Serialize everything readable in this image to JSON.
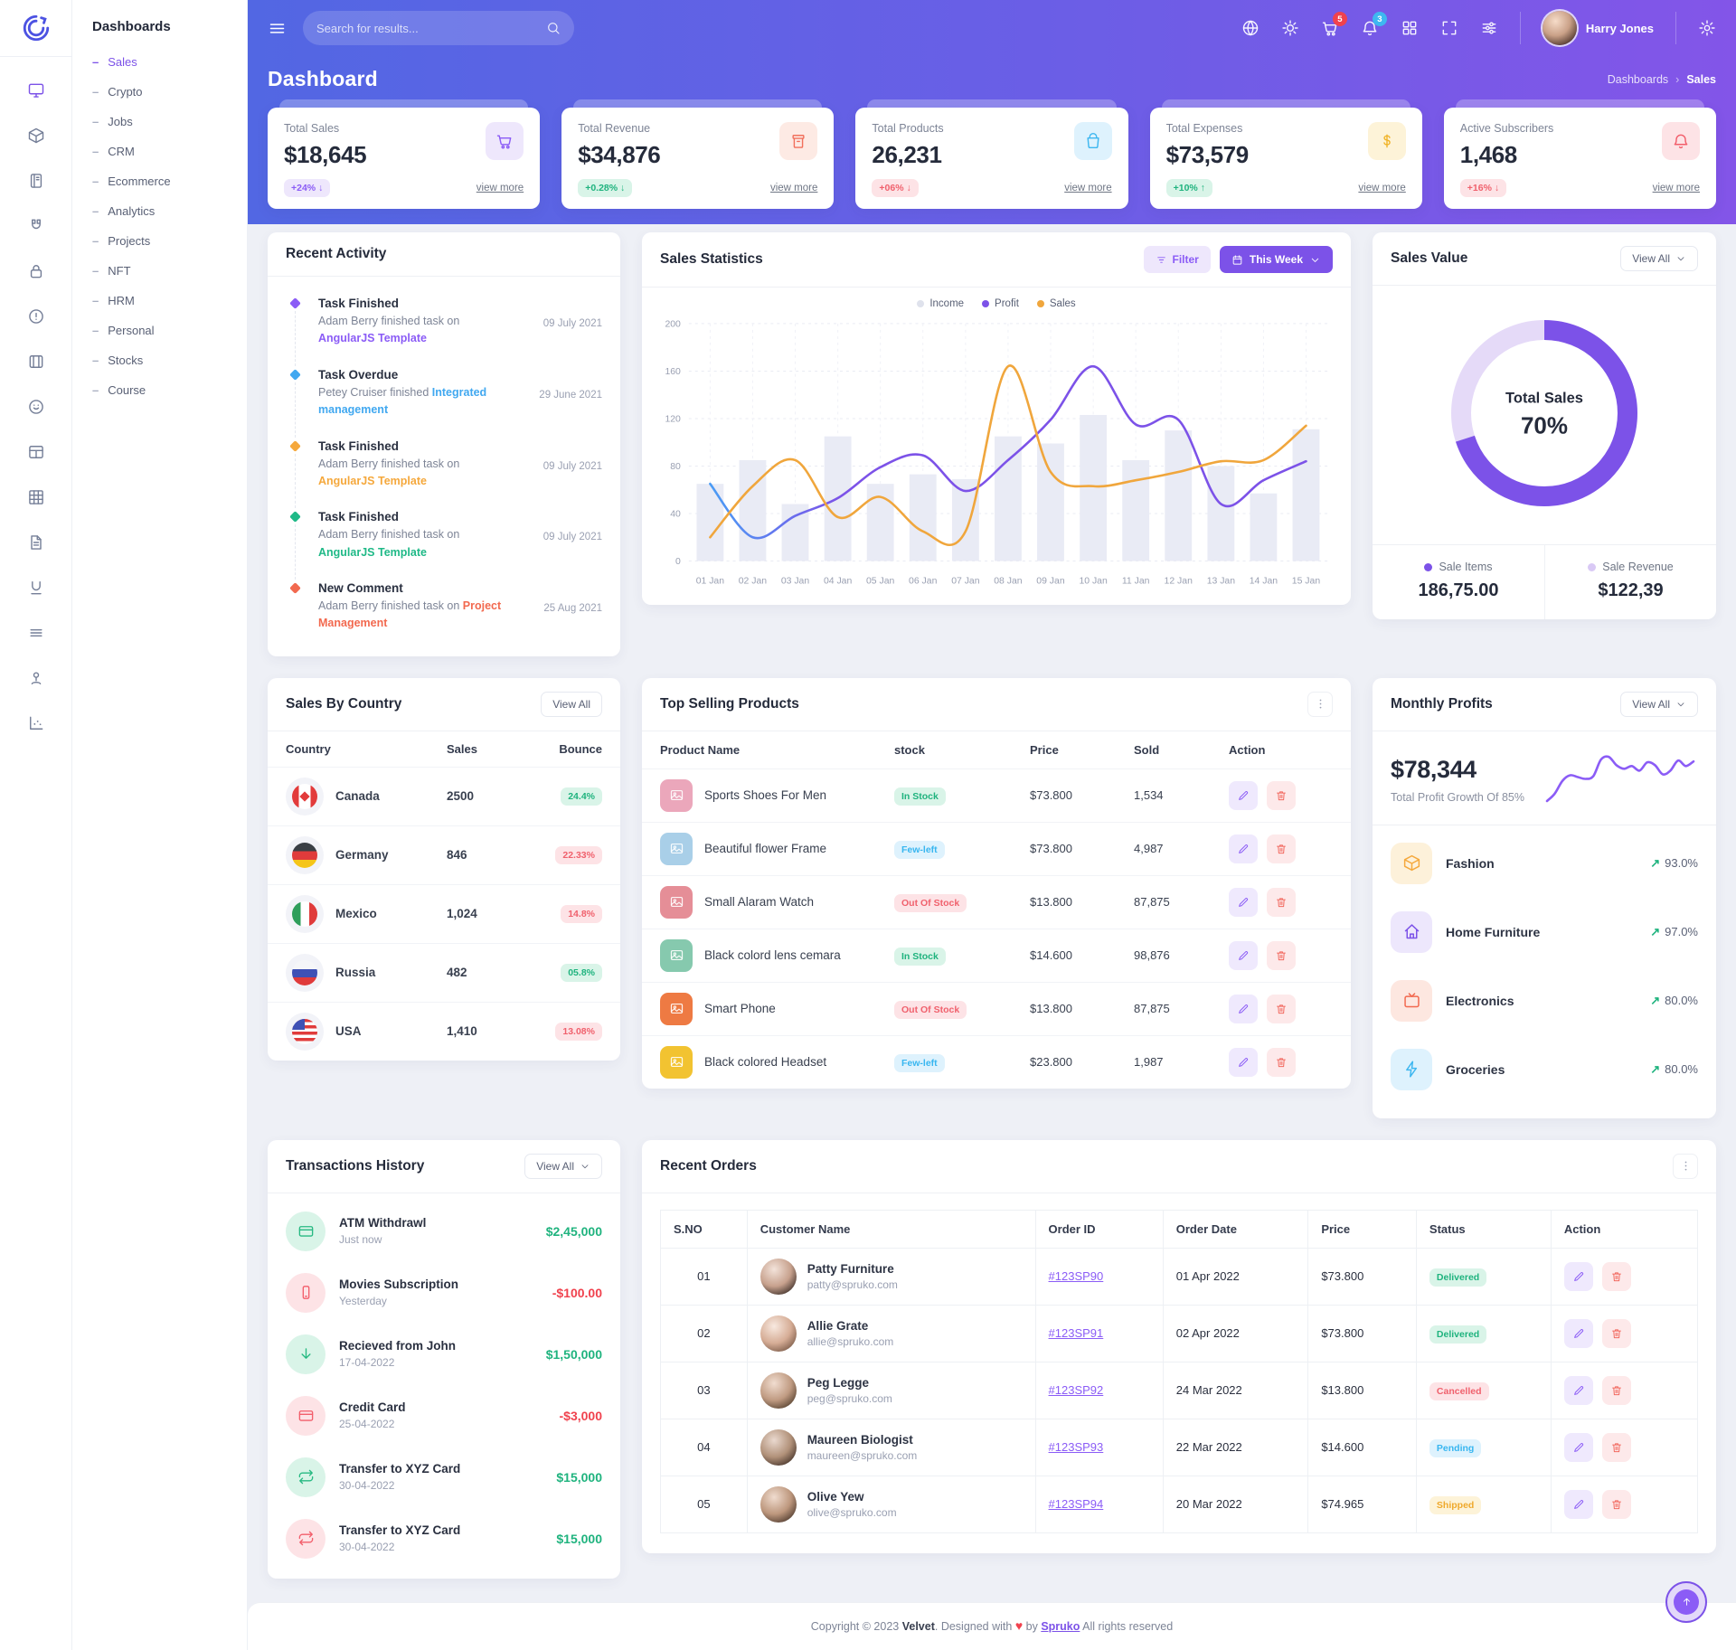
{
  "sidebar": {
    "title": "Dashboards",
    "rail_icons": [
      "monitor-icon",
      "cube-icon",
      "notebook-icon",
      "magnet-icon",
      "lock-icon",
      "alert-circle-icon",
      "book-open-icon",
      "smiley-icon",
      "layout-icon",
      "grid-table-icon",
      "file-icon",
      "underline-icon",
      "menu-lines-icon",
      "joystick-icon",
      "chart-dots-icon"
    ],
    "items": [
      {
        "label": "Sales",
        "active": true
      },
      {
        "label": "Crypto",
        "active": false
      },
      {
        "label": "Jobs",
        "active": false
      },
      {
        "label": "CRM",
        "active": false
      },
      {
        "label": "Ecommerce",
        "active": false
      },
      {
        "label": "Analytics",
        "active": false
      },
      {
        "label": "Projects",
        "active": false
      },
      {
        "label": "NFT",
        "active": false
      },
      {
        "label": "HRM",
        "active": false
      },
      {
        "label": "Personal",
        "active": false
      },
      {
        "label": "Stocks",
        "active": false
      },
      {
        "label": "Course",
        "active": false
      }
    ]
  },
  "topbar": {
    "search_placeholder": "Search for results...",
    "user_name": "Harry Jones",
    "icons": [
      {
        "name": "globe-icon",
        "glyph": "globe"
      },
      {
        "name": "light-mode-icon",
        "glyph": "sun"
      },
      {
        "name": "cart-icon",
        "glyph": "cart",
        "badge": "5",
        "badge_color": "red"
      },
      {
        "name": "notifications-icon",
        "glyph": "bell",
        "badge": "3",
        "badge_color": "blue"
      },
      {
        "name": "apps-grid-icon",
        "glyph": "grid4"
      },
      {
        "name": "fullscreen-icon",
        "glyph": "expand"
      },
      {
        "name": "switcher-icon",
        "glyph": "sliders"
      }
    ]
  },
  "page": {
    "title": "Dashboard",
    "breadcrumb": [
      "Dashboards",
      "Sales"
    ]
  },
  "stats": [
    {
      "label": "Total Sales",
      "value": "$18,645",
      "badge": "+24% ↓",
      "badge_color": "p-purple",
      "icon": "cart-icon",
      "glyph": "cart",
      "tint": "t-purple",
      "view_more": "view more"
    },
    {
      "label": "Total Revenue",
      "value": "$34,876",
      "badge": "+0.28% ↓",
      "badge_color": "p-green",
      "icon": "archive-icon",
      "glyph": "archive",
      "tint": "t-redor",
      "view_more": "view more"
    },
    {
      "label": "Total Products",
      "value": "26,231",
      "badge": "+06% ↓",
      "badge_color": "p-red",
      "icon": "bag-icon",
      "glyph": "bag",
      "tint": "t-blue",
      "view_more": "view more"
    },
    {
      "label": "Total Expenses",
      "value": "$73,579",
      "badge": "+10% ↑",
      "badge_color": "p-green",
      "icon": "dollar-icon",
      "glyph": "dollar",
      "tint": "t-yellow",
      "view_more": "view more"
    },
    {
      "label": "Active Subscribers",
      "value": "1,468",
      "badge": "+16% ↓",
      "badge_color": "p-red",
      "icon": "bell-icon",
      "glyph": "bell",
      "tint": "t-red",
      "view_more": "view more"
    }
  ],
  "recent_activity": {
    "title": "Recent Activity",
    "items": [
      {
        "title": "Task Finished",
        "text": "Adam Berry finished task on",
        "link": "AngularJS Template",
        "date": "09 July 2021",
        "color": "#8b5cf6"
      },
      {
        "title": "Task Overdue",
        "text": "Petey Cruiser finished",
        "link": "Integrated management",
        "date": "29 June 2021",
        "color": "#41a8f0"
      },
      {
        "title": "Task Finished",
        "text": "Adam Berry finished task on",
        "link": "AngularJS Template",
        "date": "09 July 2021",
        "color": "#f5a83c"
      },
      {
        "title": "Task Finished",
        "text": "Adam Berry finished task on",
        "link": "AngularJS Template",
        "date": "09 July 2021",
        "color": "#1fb987"
      },
      {
        "title": "New Comment",
        "text": "Adam Berry finished task on",
        "link": "Project Management",
        "date": "25 Aug 2021",
        "color": "#f2694f"
      }
    ]
  },
  "sales_statistics": {
    "title": "Sales Statistics",
    "filter_label": "Filter",
    "range_label": "This Week"
  },
  "chart_data": [
    {
      "id": "sales-statistics",
      "type": "bar",
      "title": "Sales Statistics",
      "categories": [
        "01 Jan",
        "02 Jan",
        "03 Jan",
        "04 Jan",
        "05 Jan",
        "06 Jan",
        "07 Jan",
        "08 Jan",
        "09 Jan",
        "10 Jan",
        "11 Jan",
        "12 Jan",
        "13 Jan",
        "14 Jan",
        "15 Jan"
      ],
      "series": [
        {
          "name": "Income",
          "type": "bar",
          "color": "#e9ebf5",
          "dot": "#dfe2ec",
          "values": [
            65,
            85,
            48,
            105,
            65,
            73,
            69,
            105,
            99,
            123,
            85,
            110,
            80,
            57,
            111
          ]
        },
        {
          "name": "Profit",
          "type": "line",
          "color": "#7c52e8",
          "gradient_start": "#4a9cf5",
          "dot": "#7c52e8",
          "values": [
            65,
            20,
            38,
            53,
            79,
            89,
            59,
            85,
            119,
            164,
            115,
            119,
            48,
            68,
            84
          ]
        },
        {
          "name": "Sales",
          "type": "line",
          "color": "#f0a63c",
          "dot": "#f0a63c",
          "values": [
            20,
            63,
            85,
            37,
            54,
            25,
            25,
            164,
            75,
            63,
            68,
            75,
            84,
            85,
            114
          ]
        }
      ],
      "ylim": [
        0,
        200
      ],
      "yticks": [
        0,
        40,
        80,
        120,
        160,
        200
      ],
      "grid": true,
      "legend_position": "top"
    },
    {
      "id": "sales-value-donut",
      "type": "pie",
      "label": "Total Sales",
      "value_percent": 70,
      "segments": [
        {
          "label": "Sale Items",
          "value": 70,
          "color": "#7c52e8"
        },
        {
          "label": "Sale Revenue",
          "value": 30,
          "color": "#e5daf8"
        }
      ]
    },
    {
      "id": "monthly-profit-sparkline",
      "type": "line",
      "color": "#8b5cf6",
      "values": [
        2,
        10,
        24,
        30,
        28,
        26,
        29,
        47,
        50,
        41,
        37,
        40,
        35,
        44,
        41,
        31,
        35,
        46,
        40,
        45
      ]
    }
  ],
  "sales_value": {
    "title": "Sales Value",
    "view_all": "View All",
    "center_label": "Total Sales",
    "percent": "70%",
    "legend": [
      {
        "label": "Sale Items",
        "value": "186,75.00",
        "dot": "#7c52e8"
      },
      {
        "label": "Sale Revenue",
        "value": "$122,39",
        "dot": "#d9c9f5"
      }
    ]
  },
  "sales_by_country": {
    "title": "Sales By Country",
    "view_all": "View All",
    "columns": [
      "Country",
      "Sales",
      "Bounce"
    ],
    "rows": [
      {
        "country": "Canada",
        "sales": "2500",
        "bounce": "24.4%",
        "bounce_color": "p-green",
        "flag": "canada"
      },
      {
        "country": "Germany",
        "sales": "846",
        "bounce": "22.33%",
        "bounce_color": "p-red",
        "flag": "germany"
      },
      {
        "country": "Mexico",
        "sales": "1,024",
        "bounce": "14.8%",
        "bounce_color": "p-red",
        "flag": "mexico"
      },
      {
        "country": "Russia",
        "sales": "482",
        "bounce": "05.8%",
        "bounce_color": "p-green",
        "flag": "russia"
      },
      {
        "country": "USA",
        "sales": "1,410",
        "bounce": "13.08%",
        "bounce_color": "p-red",
        "flag": "usa"
      }
    ]
  },
  "top_selling": {
    "title": "Top Selling Products",
    "columns": [
      "Product Name",
      "stock",
      "Price",
      "Sold",
      "Action"
    ],
    "rows": [
      {
        "name": "Sports Shoes For Men",
        "stock": "In Stock",
        "stock_color": "p-green",
        "price": "$73.800",
        "sold": "1,534",
        "thumb": "#eba7bb"
      },
      {
        "name": "Beautiful flower Frame",
        "stock": "Few-left",
        "stock_color": "p-blue",
        "price": "$73.800",
        "sold": "4,987",
        "thumb": "#a9cfe8"
      },
      {
        "name": "Small Alaram Watch",
        "stock": "Out Of Stock",
        "stock_color": "p-red",
        "price": "$13.800",
        "sold": "87,875",
        "thumb": "#e58e97"
      },
      {
        "name": "Black colord lens cemara",
        "stock": "In Stock",
        "stock_color": "p-green",
        "price": "$14.600",
        "sold": "98,876",
        "thumb": "#86c9ae"
      },
      {
        "name": "Smart Phone",
        "stock": "Out Of Stock",
        "stock_color": "p-red",
        "price": "$13.800",
        "sold": "87,875",
        "thumb": "#ee7a43"
      },
      {
        "name": "Black colored Headset",
        "stock": "Few-left",
        "stock_color": "p-blue",
        "price": "$23.800",
        "sold": "1,987",
        "thumb": "#f2c331"
      }
    ]
  },
  "monthly_profits": {
    "title": "Monthly Profits",
    "view_all": "View All",
    "value": "$78,344",
    "subtitle": "Total Profit Growth Of 85%",
    "items": [
      {
        "label": "Fashion",
        "percent": "93.0%",
        "value": 93,
        "color": "#f5a83c",
        "tint": "#fdf1da",
        "icon": "box-icon",
        "glyph": "cube"
      },
      {
        "label": "Home Furniture",
        "percent": "97.0%",
        "value": 97,
        "color": "#7c52e8",
        "tint": "#ede7fc",
        "icon": "home-icon",
        "glyph": "home"
      },
      {
        "label": "Electronics",
        "percent": "80.0%",
        "value": 80,
        "color": "#f2694f",
        "tint": "#fde7e0",
        "icon": "tv-icon",
        "glyph": "tv"
      },
      {
        "label": "Groceries",
        "percent": "80.0%",
        "value": 80,
        "color": "#3eb7f0",
        "tint": "#def2fd",
        "icon": "zap-icon",
        "glyph": "zap"
      }
    ]
  },
  "transactions": {
    "title": "Transactions History",
    "view_all": "View All",
    "rows": [
      {
        "title": "ATM Withdrawl",
        "date": "Just now",
        "amount": "$2,45,000",
        "amount_color": "c-green",
        "icon": "credit-card-icon",
        "glyph": "card",
        "tint": "t-green"
      },
      {
        "title": "Movies Subscription",
        "date": "Yesterday",
        "amount": "-$100.00",
        "amount_color": "c-red",
        "icon": "mobile-icon",
        "glyph": "mobile",
        "tint": "t-red"
      },
      {
        "title": "Recieved from John",
        "date": "17-04-2022",
        "amount": "$1,50,000",
        "amount_color": "c-green",
        "icon": "arrow-down-icon",
        "glyph": "arrdown",
        "tint": "t-green"
      },
      {
        "title": "Credit Card",
        "date": "25-04-2022",
        "amount": "-$3,000",
        "amount_color": "c-red",
        "icon": "credit-card-icon",
        "glyph": "card",
        "tint": "t-red"
      },
      {
        "title": "Transfer to XYZ Card",
        "date": "30-04-2022",
        "amount": "$15,000",
        "amount_color": "c-green",
        "icon": "transfer-icon",
        "glyph": "repeat",
        "tint": "t-green"
      },
      {
        "title": "Transfer to XYZ Card",
        "date": "30-04-2022",
        "amount": "$15,000",
        "amount_color": "c-green",
        "icon": "transfer-icon",
        "glyph": "repeat",
        "tint": "t-red"
      }
    ]
  },
  "recent_orders": {
    "title": "Recent Orders",
    "columns": [
      "S.NO",
      "Customer Name",
      "Order ID",
      "Order Date",
      "Price",
      "Status",
      "Action"
    ],
    "rows": [
      {
        "sno": "01",
        "name": "Patty Furniture",
        "email": "patty@spruko.com",
        "order_id": "#123SP90",
        "date": "01 Apr 2022",
        "price": "$73.800",
        "status": "Delivered",
        "status_color": "p-green",
        "avatar": "av1"
      },
      {
        "sno": "02",
        "name": "Allie Grate",
        "email": "allie@spruko.com",
        "order_id": "#123SP91",
        "date": "02 Apr 2022",
        "price": "$73.800",
        "status": "Delivered",
        "status_color": "p-green",
        "avatar": "av2"
      },
      {
        "sno": "03",
        "name": "Peg Legge",
        "email": "peg@spruko.com",
        "order_id": "#123SP92",
        "date": "24 Mar 2022",
        "price": "$13.800",
        "status": "Cancelled",
        "status_color": "p-red",
        "avatar": "av3"
      },
      {
        "sno": "04",
        "name": "Maureen Biologist",
        "email": "maureen@spruko.com",
        "order_id": "#123SP93",
        "date": "22 Mar 2022",
        "price": "$14.600",
        "status": "Pending",
        "status_color": "p-blue",
        "avatar": "av4"
      },
      {
        "sno": "05",
        "name": "Olive Yew",
        "email": "olive@spruko.com",
        "order_id": "#123SP94",
        "date": "20 Mar 2022",
        "price": "$74.965",
        "status": "Shipped",
        "status_color": "p-yellow",
        "avatar": "av5"
      }
    ]
  },
  "footer": {
    "copyright": "Copyright © 2023",
    "brand": "Velvet",
    "middle": ". Designed with",
    "heart": "♥",
    "by": "by",
    "designer": "Spruko",
    "rights": "All rights reserved"
  }
}
